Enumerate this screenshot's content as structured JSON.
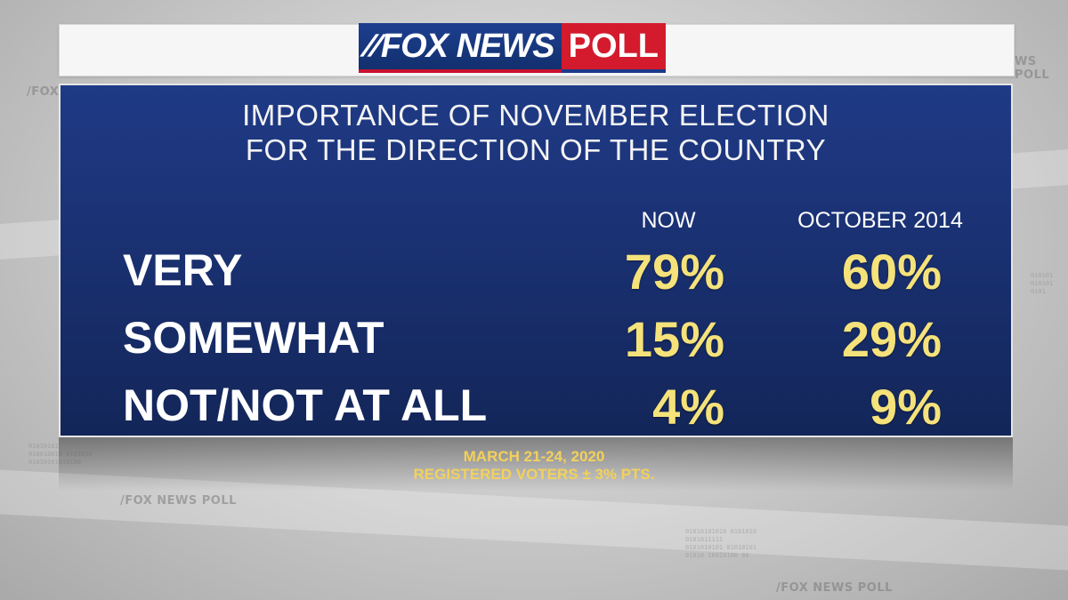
{
  "brand": {
    "logo_fox": "FOX NEWS",
    "logo_poll": "POLL",
    "accent_blue": "#1d3f8f",
    "accent_red": "#d31b2d",
    "value_color": "#f5e27a"
  },
  "chart_data": {
    "type": "table",
    "title_line1": "IMPORTANCE OF NOVEMBER ELECTION",
    "title_line2": "FOR THE DIRECTION OF THE COUNTRY",
    "columns": [
      "NOW",
      "OCTOBER 2014"
    ],
    "rows": [
      {
        "label": "VERY",
        "values": [
          "79%",
          "60%"
        ]
      },
      {
        "label": "SOMEWHAT",
        "values": [
          "15%",
          "29%"
        ]
      },
      {
        "label": "NOT/NOT AT ALL",
        "values": [
          "4%",
          "9%"
        ]
      }
    ],
    "footnote_line1": "MARCH 21-24, 2020",
    "footnote_line2": "REGISTERED VOTERS ± 3% PTS."
  }
}
